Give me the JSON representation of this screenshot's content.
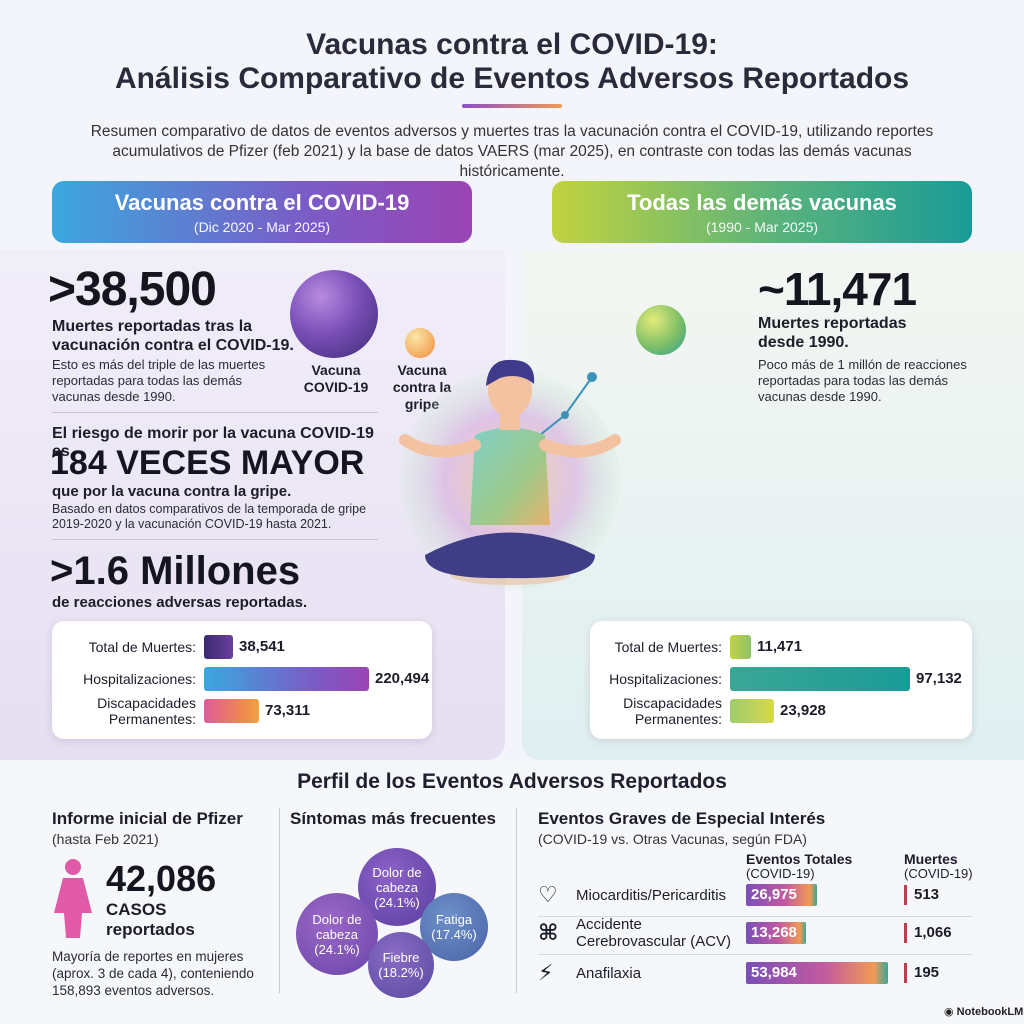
{
  "header": {
    "title_line1": "Vacunas contra el COVID-19:",
    "title_line2": "Análisis Comparativo de Eventos Adversos Reportados",
    "subtitle": "Resumen comparativo de datos de eventos adversos y muertes tras la vacunación contra el COVID-19, utilizando reportes acumulativos de Pfizer (feb 2021) y la base de datos VAERS (mar 2025), en contraste con todas las demás vacunas históricamente."
  },
  "left_banner": {
    "title": "Vacunas contra el COVID-19",
    "subtitle": "(Dic 2020 - Mar 2025)"
  },
  "right_banner": {
    "title": "Todas las demás vacunas",
    "subtitle": "(1990 - Mar 2025)"
  },
  "left": {
    "deaths_big": ">38,500",
    "deaths_label": "Muertes reportadas tras la vacunación contra el COVID-19.",
    "deaths_note": "Esto es más del triple de las muertes reportadas para todas las demás vacunas desde 1990.",
    "risk_intro": "El riesgo de morir por la vacuna COVID-19 es",
    "risk_big": "184 VECES MAYOR",
    "risk_label": "que por la vacuna contra la gripe.",
    "risk_note": "Basado en datos comparativos de la temporada de gripe 2019-2020 y la vacunación COVID-19 hasta 2021.",
    "reactions_big": ">1.6 Millones",
    "reactions_label": "de reacciones adversas reportadas."
  },
  "center": {
    "sphere_covid_label": "Vacuna COVID-19",
    "sphere_flu_label": "Vacuna contra la gripe"
  },
  "right": {
    "deaths_big": "~11,471",
    "deaths_label": "Muertes reportadas desde 1990.",
    "deaths_note": "Poco más de 1 millón de reacciones reportadas para todas las demás vacunas desde 1990."
  },
  "left_bars": [
    {
      "label": "Total de Muertes:",
      "value": 38541,
      "display": "38,541"
    },
    {
      "label": "Hospitalizaciones:",
      "value": 220494,
      "display": "220,494"
    },
    {
      "label": "Discapacidades Permanentes:",
      "value": 73311,
      "display": "73,311"
    }
  ],
  "right_bars": [
    {
      "label": "Total de Muertes:",
      "value": 11471,
      "display": "11,471"
    },
    {
      "label": "Hospitalizaciones:",
      "value": 97132,
      "display": "97,132"
    },
    {
      "label": "Discapacidades Permanentes:",
      "value": 23928,
      "display": "23,928"
    }
  ],
  "profile": {
    "title": "Perfil de los Eventos Adversos Reportados",
    "pfizer_title": "Informe inicial de Pfizer",
    "pfizer_sub": "(hasta Feb 2021)",
    "pfizer_big": "42,086",
    "pfizer_cases": "CASOS",
    "pfizer_reported": "reportados",
    "pfizer_note": "Mayoría de reportes en mujeres (aprox. 3 de cada 4), conteniendo 158,893 eventos adversos.",
    "symptoms_title": "Síntomas más frecuentes",
    "symptoms": [
      {
        "label": "Dolor de cabeza",
        "pct": "(24.1%)"
      },
      {
        "label": "Dolor de cabeza",
        "pct": "(24.1%)"
      },
      {
        "label": "Fatiga",
        "pct": "(17.4%)"
      },
      {
        "label": "Fiebre",
        "pct": "(18.2%)"
      }
    ],
    "events_title": "Eventos Graves de Especial Interés",
    "events_sub": "(COVID-19 vs. Otras Vacunas, según FDA)",
    "col_total": "Eventos Totales",
    "col_total_sub": "(COVID-19)",
    "col_deaths": "Muertes",
    "col_deaths_sub": "(COVID-19)",
    "events": [
      {
        "icon": "heart-pulse-icon",
        "label": "Miocarditis/Pericarditis",
        "total": 26975,
        "total_display": "26,975",
        "deaths": "513"
      },
      {
        "icon": "brain-icon",
        "label": "Accidente Cerebrovascular (ACV)",
        "total": 13268,
        "total_display": "13,268",
        "deaths": "1,066"
      },
      {
        "icon": "lightning-icon",
        "label": "Anafilaxia",
        "total": 53984,
        "total_display": "53,984",
        "deaths": "195"
      }
    ]
  },
  "footer": {
    "brand": "NotebookLM"
  },
  "colors": {
    "accent_purple": "#7a4fb8",
    "accent_teal": "#1a9b97",
    "accent_lime": "#c2d33f",
    "female_icon": "#e15aa7",
    "death_mark": "#c23b4e"
  }
}
